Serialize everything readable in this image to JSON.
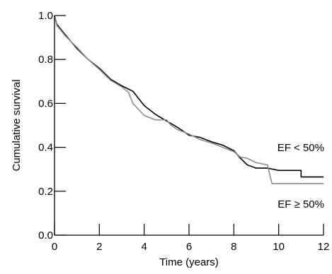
{
  "chart_data": {
    "type": "line",
    "title": "",
    "xlabel": "Time (years)",
    "ylabel": "Cumulative survival",
    "xlim": [
      0,
      12
    ],
    "ylim": [
      0,
      1
    ],
    "xticks": [
      0,
      2,
      4,
      6,
      8,
      10,
      12
    ],
    "yticks": [
      0.0,
      0.2,
      0.4,
      0.6,
      0.8,
      1.0
    ],
    "xtick_labels": [
      "0",
      "2",
      "4",
      "6",
      "8",
      "10",
      "12"
    ],
    "ytick_labels": [
      "0.0",
      "0.2",
      "0.4",
      "0.6",
      "0.8",
      "1.0"
    ],
    "grid": false,
    "series": [
      {
        "name": "EF < 50%",
        "color": "#000000",
        "points": [
          [
            0,
            1.0
          ],
          [
            0.1,
            0.96
          ],
          [
            0.3,
            0.935
          ],
          [
            0.5,
            0.91
          ],
          [
            1.0,
            0.85
          ],
          [
            1.5,
            0.8
          ],
          [
            2.0,
            0.76
          ],
          [
            2.5,
            0.71
          ],
          [
            3.0,
            0.68
          ],
          [
            3.5,
            0.655
          ],
          [
            4.0,
            0.59
          ],
          [
            4.5,
            0.55
          ],
          [
            5.0,
            0.52
          ],
          [
            5.5,
            0.49
          ],
          [
            6.0,
            0.455
          ],
          [
            6.5,
            0.445
          ],
          [
            7.0,
            0.425
          ],
          [
            7.5,
            0.41
          ],
          [
            8.0,
            0.385
          ],
          [
            8.3,
            0.35
          ],
          [
            8.6,
            0.32
          ],
          [
            9.0,
            0.305
          ],
          [
            9.5,
            0.305
          ],
          [
            10.0,
            0.295
          ],
          [
            11.0,
            0.295
          ],
          [
            11.0,
            0.265
          ],
          [
            12.0,
            0.265
          ]
        ]
      },
      {
        "name": "EF ≥ 50%",
        "color": "#8c8c8c",
        "points": [
          [
            0,
            1.0
          ],
          [
            0.1,
            0.955
          ],
          [
            0.3,
            0.93
          ],
          [
            0.5,
            0.905
          ],
          [
            1.0,
            0.855
          ],
          [
            1.5,
            0.8
          ],
          [
            2.0,
            0.755
          ],
          [
            2.5,
            0.705
          ],
          [
            3.0,
            0.675
          ],
          [
            3.3,
            0.65
          ],
          [
            3.5,
            0.6
          ],
          [
            4.0,
            0.545
          ],
          [
            4.5,
            0.525
          ],
          [
            5.0,
            0.525
          ],
          [
            5.2,
            0.5
          ],
          [
            5.5,
            0.48
          ],
          [
            6.0,
            0.46
          ],
          [
            6.5,
            0.435
          ],
          [
            7.0,
            0.42
          ],
          [
            7.5,
            0.4
          ],
          [
            8.0,
            0.38
          ],
          [
            8.3,
            0.355
          ],
          [
            8.6,
            0.35
          ],
          [
            9.0,
            0.33
          ],
          [
            9.5,
            0.32
          ],
          [
            9.7,
            0.235
          ],
          [
            10.5,
            0.235
          ],
          [
            12.0,
            0.235
          ]
        ]
      }
    ]
  }
}
